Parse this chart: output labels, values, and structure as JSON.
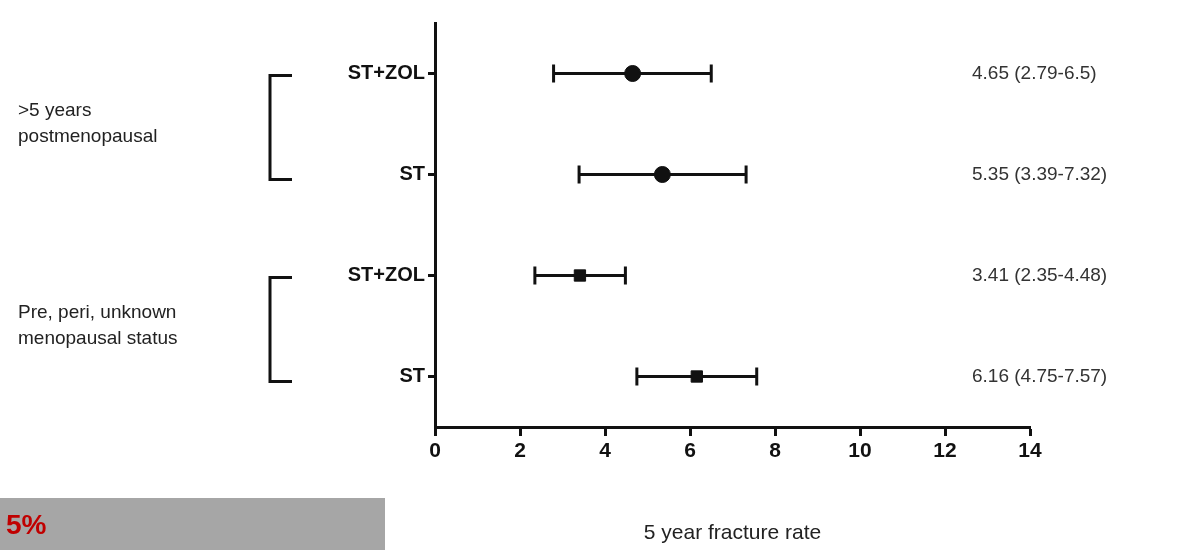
{
  "chart_data": {
    "type": "scatter",
    "orientation": "horizontal",
    "xlabel": "5 year fracture rate",
    "categories": [
      "ST+ZOL",
      "ST",
      "ST+ZOL",
      "ST"
    ],
    "series": [
      {
        "color": "#111111",
        "marker": "circle",
        "values": [
          4.65,
          5.35,
          null,
          null
        ],
        "errors": [
          [
            2.79,
            6.5
          ],
          [
            3.39,
            7.32
          ],
          null,
          null
        ]
      },
      {
        "color": "#111111",
        "marker": "square",
        "values": [
          null,
          null,
          3.41,
          6.16
        ],
        "errors": [
          null,
          null,
          [
            2.35,
            4.48
          ],
          [
            4.75,
            7.57
          ]
        ]
      }
    ],
    "value_labels": [
      "4.65 (2.79-6.5)",
      "5.35 (3.39-7.32)",
      "3.41 (2.35-4.48)",
      "6.16 (4.75-7.57)"
    ],
    "xlim": [
      0,
      14
    ],
    "xticks": [
      0,
      2,
      4,
      6,
      8,
      10,
      12,
      14
    ],
    "annotations": [
      ">5 years postmenopausal",
      "Pre, peri, unknown menopausal status",
      "5%"
    ]
  }
}
